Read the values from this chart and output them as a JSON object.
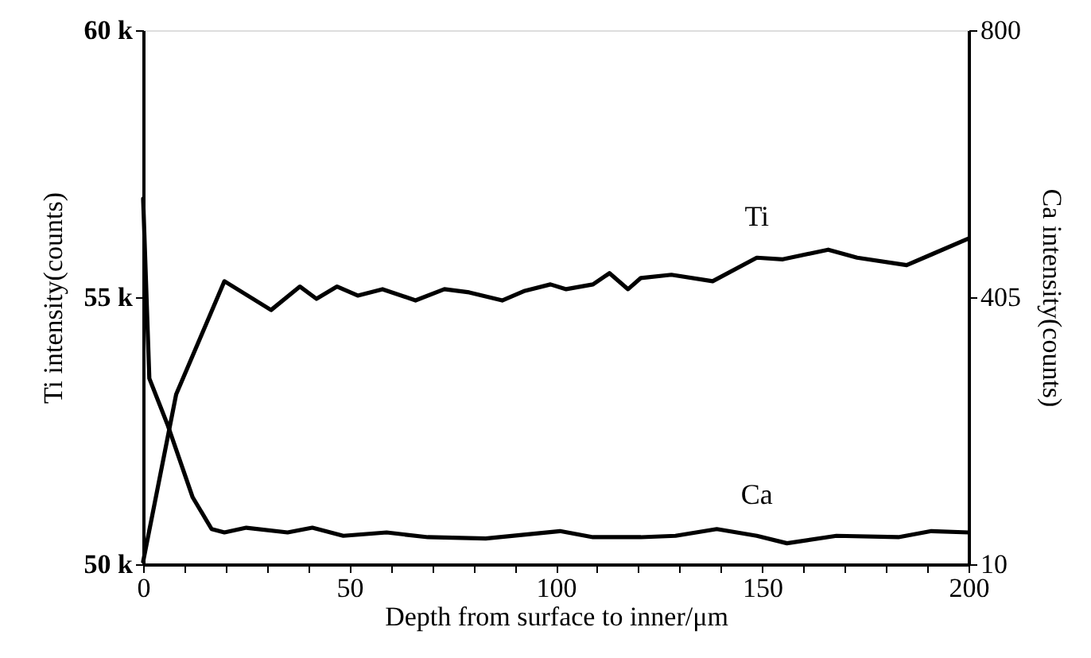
{
  "chart_data": {
    "type": "line",
    "xlabel": "Depth from surface to inner/μm",
    "ylabel": "Ti  intensity(counts)",
    "y2label": "Ca  intensity(counts)",
    "xlim": [
      0,
      200
    ],
    "xticks": [
      0,
      {
        "value": 10,
        "label": null
      },
      {
        "value": 20,
        "label": null
      },
      {
        "value": 30,
        "label": null
      },
      {
        "value": 40,
        "label": null
      },
      50,
      {
        "value": 60,
        "label": null
      },
      {
        "value": 70,
        "label": null
      },
      {
        "value": 80,
        "label": null
      },
      {
        "value": 90,
        "label": null
      },
      100,
      {
        "value": 110,
        "label": null
      },
      {
        "value": 120,
        "label": null
      },
      {
        "value": 130,
        "label": null
      },
      {
        "value": 140,
        "label": null
      },
      150,
      {
        "value": 160,
        "label": null
      },
      {
        "value": 170,
        "label": null
      },
      {
        "value": 180,
        "label": null
      },
      {
        "value": 190,
        "label": null
      },
      200
    ],
    "ylim": [
      50000,
      60000
    ],
    "yticks": [
      {
        "value": 50000,
        "label": "50 k"
      },
      {
        "value": 55000,
        "label": "55 k"
      },
      {
        "value": 60000,
        "label": "60 k"
      }
    ],
    "y2lim": [
      10,
      800
    ],
    "y2ticks": [
      10,
      405,
      800
    ],
    "grid": false,
    "marker": "none",
    "line_style": "solid",
    "series": [
      {
        "color": "#000000",
        "x": [
          0,
          8,
          19.7,
          31,
          38,
          42,
          47,
          52,
          58,
          66,
          73,
          79,
          87,
          92.5,
          98.7,
          102.5,
          109,
          113,
          117.5,
          120.6,
          128,
          138,
          148.7,
          155,
          166,
          173,
          185,
          191,
          200
        ],
        "values": [
          50050,
          53180,
          55300,
          54760,
          55200,
          54970,
          55200,
          55030,
          55150,
          54940,
          55150,
          55090,
          54940,
          55120,
          55240,
          55150,
          55240,
          55450,
          55150,
          55360,
          55420,
          55300,
          55740,
          55710,
          55890,
          55740,
          55600,
          55800,
          56100
        ]
      },
      {
        "color": "#000000",
        "axis": "y2",
        "x": [
          0,
          1.5,
          6,
          12,
          16.6,
          19.7,
          25,
          35,
          41,
          48.5,
          59,
          69,
          83,
          101,
          109,
          120.6,
          129,
          139,
          148.7,
          156,
          168,
          183,
          191,
          200
        ],
        "values": [
          551,
          285,
          215,
          109,
          62,
          57,
          64,
          57,
          64,
          52,
          57,
          50,
          48,
          59,
          50,
          50,
          52,
          62,
          52,
          41,
          52,
          50,
          59,
          57
        ]
      }
    ],
    "annotations": [
      "Ti",
      "Ca"
    ]
  }
}
